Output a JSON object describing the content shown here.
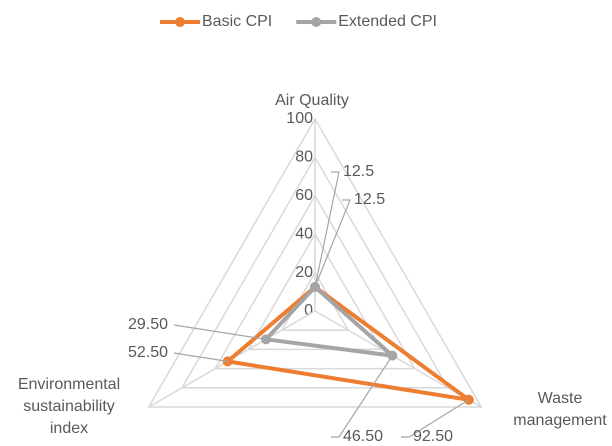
{
  "chart_data": {
    "type": "radar",
    "categories": [
      "Air Quality",
      "Waste management",
      "Environmental sustainability index"
    ],
    "series": [
      {
        "name": "Basic CPI",
        "color": "#ed7d31",
        "values": [
          12.5,
          92.5,
          52.5
        ],
        "value_labels": [
          "12.5",
          "92.50",
          "52.50"
        ]
      },
      {
        "name": "Extended CPI",
        "color": "#a5a5a5",
        "values": [
          12.5,
          46.5,
          29.5
        ],
        "value_labels": [
          "12.5",
          "46.50",
          "29.50"
        ]
      }
    ],
    "rlim": [
      0,
      100
    ],
    "rticks": [
      0,
      20,
      40,
      60,
      80,
      100
    ],
    "grid": true,
    "legend": "top"
  }
}
